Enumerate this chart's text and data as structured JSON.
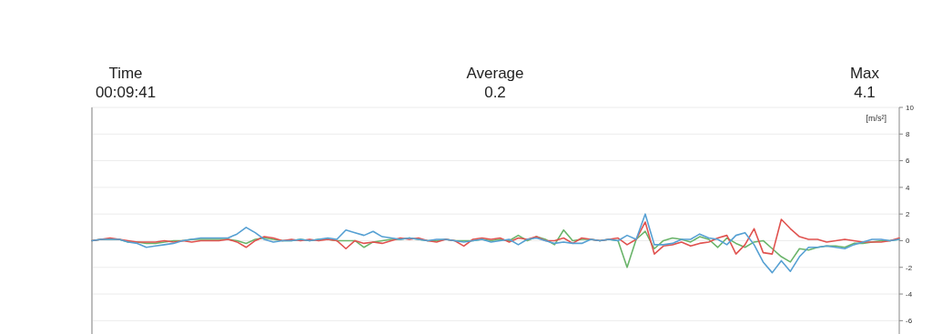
{
  "chart_data": {
    "type": "line",
    "ylabel": "[m/s²]",
    "annotations": [
      "Time",
      "00:09:41",
      "Average",
      "0.2",
      "Max",
      "4.1"
    ],
    "categories": [
      null,
      null,
      null,
      null,
      null,
      null,
      null,
      null,
      null,
      null,
      null,
      null,
      null,
      null,
      null,
      null,
      null,
      null,
      null,
      null,
      null,
      null,
      null,
      null,
      null,
      null,
      null,
      null,
      null,
      null,
      null,
      null,
      null,
      null,
      null,
      null,
      null,
      null,
      null,
      null,
      null,
      null,
      null,
      null,
      null,
      null,
      null,
      null,
      null,
      null,
      null,
      null,
      null,
      null,
      null,
      null,
      null,
      null,
      null,
      null,
      null,
      null,
      null,
      null,
      null,
      null,
      null,
      null,
      null,
      null,
      null,
      null,
      null,
      null,
      null,
      null,
      null,
      null,
      null,
      null,
      null,
      null,
      null,
      null,
      null,
      null,
      null,
      null,
      null,
      null
    ],
    "series": [
      {
        "color": "#6ab46a",
        "values": [
          0,
          0.1,
          0.1,
          0.1,
          -0.1,
          -0.1,
          -0.2,
          -0.2,
          -0.1,
          0,
          0,
          0.1,
          0.1,
          0.1,
          0.1,
          0.1,
          0,
          -0.2,
          0.1,
          0.2,
          0.1,
          0,
          0,
          0.1,
          0,
          0.1,
          0.1,
          0,
          0,
          0,
          -0.5,
          -0.1,
          0,
          0.1,
          0.1,
          0.2,
          0.1,
          0,
          0,
          0.1,
          0,
          0,
          0,
          0.1,
          0,
          0.1,
          0,
          0.4,
          0,
          0.3,
          0.1,
          -0.3,
          0.8,
          0,
          0.1,
          0.1,
          0,
          0.1,
          0,
          -2.0,
          0.1,
          0.7,
          -0.6,
          0,
          0.2,
          0.1,
          -0.1,
          0.3,
          0.1,
          -0.5,
          0.2,
          -0.2,
          -0.5,
          -0.1,
          0,
          -0.6,
          -1.2,
          -1.6,
          -0.6,
          -0.7,
          -0.5,
          -0.4,
          -0.4,
          -0.5,
          -0.2,
          -0.2,
          -0.1,
          0,
          0,
          0.1
        ]
      },
      {
        "color": "#e0524f",
        "values": [
          0,
          0.1,
          0.2,
          0.1,
          0,
          -0.1,
          -0.1,
          -0.1,
          0,
          -0.1,
          0,
          -0.1,
          0,
          0,
          0,
          0.1,
          -0.1,
          -0.5,
          0,
          0.3,
          0.2,
          0,
          0.1,
          0,
          0.1,
          0,
          0.1,
          0,
          -0.6,
          0,
          -0.2,
          -0.1,
          -0.2,
          0,
          0.2,
          0.1,
          0.2,
          0,
          -0.1,
          0.1,
          0,
          -0.4,
          0.1,
          0.2,
          0.1,
          0.2,
          -0.1,
          0.2,
          0.1,
          0.3,
          0,
          0,
          0.2,
          -0.2,
          0.2,
          0.1,
          0,
          0.1,
          0.2,
          -0.3,
          0.1,
          1.4,
          -1.0,
          -0.4,
          -0.3,
          -0.1,
          -0.4,
          -0.2,
          -0.1,
          0.2,
          0.4,
          -1.0,
          -0.3,
          0.9,
          -0.9,
          -1.0,
          1.6,
          0.9,
          0.3,
          0.1,
          0.1,
          -0.1,
          0,
          0.1,
          0,
          -0.1,
          -0.1,
          -0.1,
          0,
          0.2
        ]
      },
      {
        "color": "#56a0d3",
        "values": [
          0,
          0.1,
          0.1,
          0.1,
          -0.1,
          -0.2,
          -0.5,
          -0.4,
          -0.3,
          -0.2,
          0,
          0.1,
          0.2,
          0.2,
          0.2,
          0.2,
          0.5,
          1.0,
          0.6,
          0.1,
          -0.1,
          0,
          0,
          0.1,
          0,
          0.1,
          0.2,
          0.1,
          0.8,
          0.6,
          0.4,
          0.7,
          0.3,
          0.2,
          0.1,
          0.2,
          0.1,
          0,
          0.1,
          0.1,
          0,
          -0.1,
          0,
          0.1,
          -0.1,
          0,
          0.1,
          -0.3,
          0.1,
          0.2,
          0,
          -0.2,
          -0.1,
          -0.2,
          -0.2,
          0.1,
          0,
          0.1,
          0,
          0.4,
          0.1,
          2.0,
          -0.3,
          -0.3,
          -0.2,
          0.1,
          0.1,
          0.5,
          0.2,
          0.1,
          -0.3,
          0.4,
          0.6,
          -0.3,
          -1.6,
          -2.4,
          -1.5,
          -2.3,
          -1.2,
          -0.5,
          -0.5,
          -0.4,
          -0.5,
          -0.6,
          -0.3,
          -0.1,
          0.1,
          0.1,
          0,
          0.1
        ]
      }
    ],
    "ylim": [
      -7,
      10
    ],
    "yticks": [
      10,
      8,
      6,
      4,
      2,
      0,
      -2,
      -4,
      -6
    ],
    "grid": "y"
  }
}
